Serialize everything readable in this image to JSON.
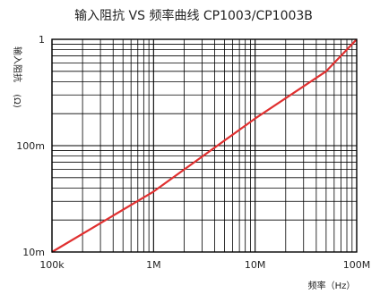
{
  "chart_data": {
    "type": "line",
    "title": "输入阻抗 VS 频率曲线 CP1003/CP1003B",
    "xlabel": "频率（Hz）",
    "ylabel": "输入阻抗",
    "ylabel_unit": "(Ω)",
    "x_scale": "log",
    "y_scale": "log",
    "xlim": [
      100000,
      100000000
    ],
    "ylim": [
      0.01,
      1
    ],
    "x_ticks": [
      {
        "value": 100000,
        "label": "100k"
      },
      {
        "value": 1000000,
        "label": "1M"
      },
      {
        "value": 10000000,
        "label": "10M"
      },
      {
        "value": 100000000,
        "label": "100M"
      }
    ],
    "y_ticks": [
      {
        "value": 0.01,
        "label": "10m"
      },
      {
        "value": 0.1,
        "label": "100m"
      },
      {
        "value": 1,
        "label": "1"
      }
    ],
    "grid": true,
    "series": [
      {
        "color": "#e03030",
        "x": [
          100000,
          1000000,
          10000000,
          50000000,
          100000000
        ],
        "y": [
          0.01,
          0.037,
          0.18,
          0.5,
          1.0
        ]
      }
    ]
  }
}
